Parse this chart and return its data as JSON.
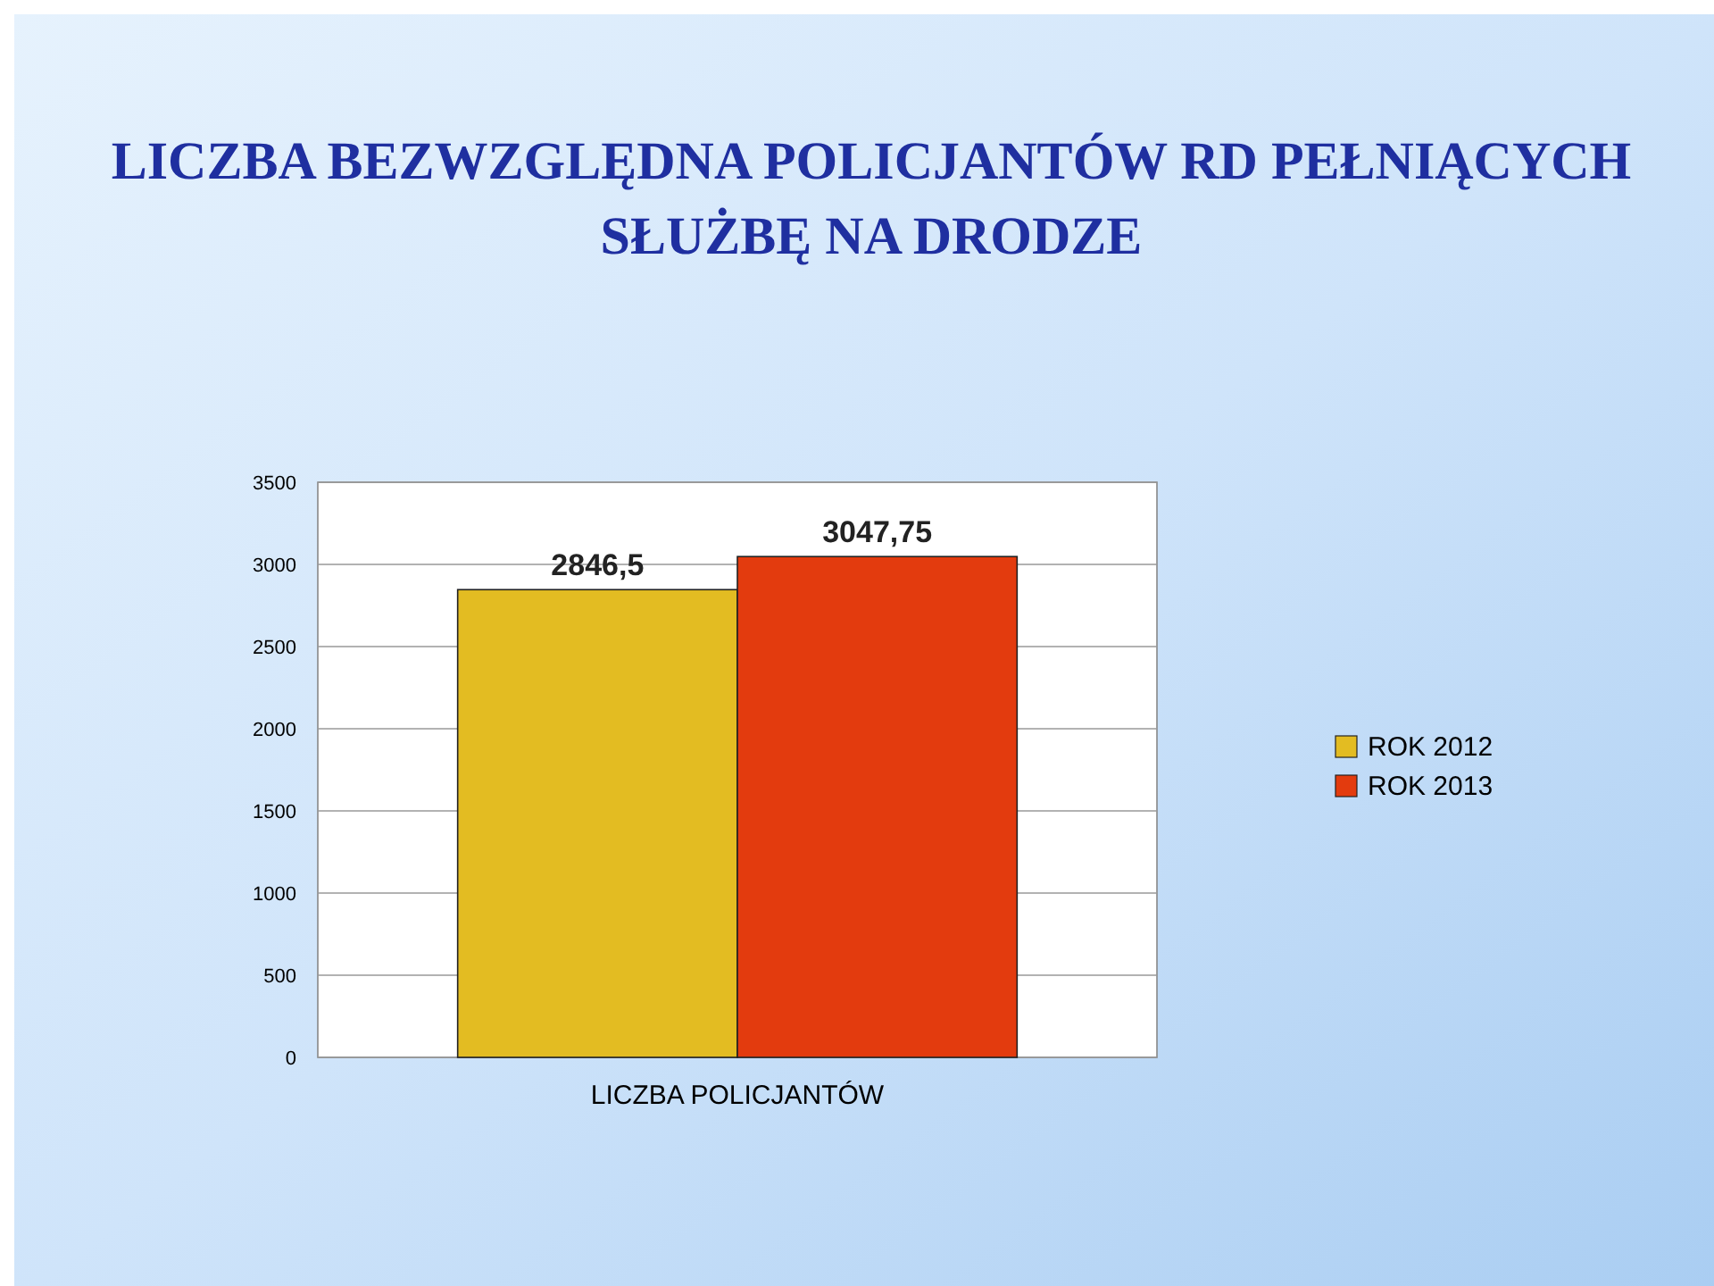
{
  "chart_data": {
    "type": "bar",
    "title": "LICZBA BEZWZGLĘDNA POLICJANTÓW RD PEŁNIĄCYCH SŁUŻBĘ NA DRODZE",
    "categories": [
      "LICZBA POLICJANTÓW"
    ],
    "series": [
      {
        "name": "ROK 2012",
        "color": "#e3bc22",
        "values": [
          2846.5
        ],
        "value_labels": [
          "2846,5"
        ]
      },
      {
        "name": "ROK 2013",
        "color": "#e33b0e",
        "values": [
          3047.75
        ],
        "value_labels": [
          "3047,75"
        ]
      }
    ],
    "ylim": [
      0,
      3500
    ],
    "yticks": [
      0,
      500,
      1000,
      1500,
      2000,
      2500,
      3000,
      3500
    ],
    "grid": "y",
    "legend": "right"
  }
}
